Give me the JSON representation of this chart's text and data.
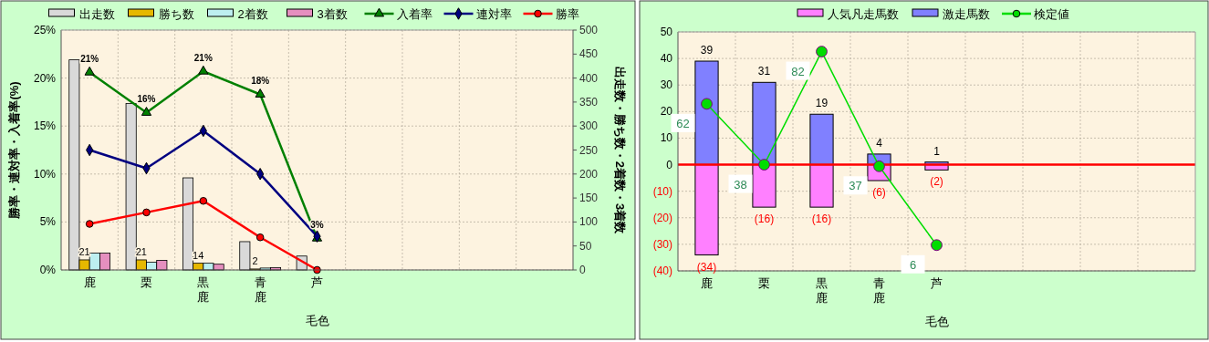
{
  "chart_data": [
    {
      "type": "bar",
      "categories": [
        "鹿",
        "栗",
        "黒鹿",
        "青鹿",
        "芦",
        null,
        null,
        null,
        null
      ],
      "xlabel": "毛色",
      "ylabel": "勝率・連対率・入着率(%)",
      "y2label": "出走数・勝ち数・2着数・3着数",
      "ylim": [
        0,
        25
      ],
      "yticks": [
        {
          "value": 0,
          "label": "0%"
        },
        {
          "value": 5,
          "label": "5%"
        },
        {
          "value": 10,
          "label": "10%"
        },
        {
          "value": 15,
          "label": "15%"
        },
        {
          "value": 20,
          "label": "20%"
        },
        {
          "value": 25,
          "label": "25%"
        }
      ],
      "y2lim": [
        0,
        500
      ],
      "y2ticks": [
        0,
        50,
        100,
        150,
        200,
        250,
        300,
        350,
        400,
        450,
        500
      ],
      "grid": true,
      "legend": "top",
      "series": [
        {
          "name": "出走数",
          "axis": "y2",
          "color": "#d9d9d9",
          "values": [
            438,
            347,
            192,
            59,
            29,
            null,
            null,
            null,
            null
          ]
        },
        {
          "name": "勝ち数",
          "axis": "y2",
          "color": "#e6b800",
          "values": [
            21,
            21,
            14,
            2,
            0,
            null,
            null,
            null,
            null
          ],
          "value_labels": [
            "21",
            "21",
            "14",
            "2",
            null,
            null,
            null,
            null,
            null
          ]
        },
        {
          "name": "2着数",
          "axis": "y2",
          "color": "#bdeff0",
          "values": [
            35,
            16,
            14,
            4,
            null,
            null,
            null,
            null,
            null
          ]
        },
        {
          "name": "3着数",
          "axis": "y2",
          "color": "#e58fbf",
          "values": [
            35,
            20,
            12,
            5,
            0,
            null,
            null,
            null,
            null
          ]
        },
        {
          "name": "入着率",
          "type": "line",
          "marker": "triangle",
          "color": "#008000",
          "values": [
            20.6,
            16.4,
            20.7,
            18.3,
            3.3,
            null,
            null,
            null,
            null
          ],
          "value_labels": [
            "21%",
            "16%",
            "21%",
            "18%",
            "3%",
            null,
            null,
            null,
            null
          ]
        },
        {
          "name": "連対率",
          "type": "line",
          "marker": "diamond",
          "color": "#000080",
          "values": [
            12.5,
            10.6,
            14.5,
            10.0,
            3.5,
            null,
            null,
            null,
            null
          ]
        },
        {
          "name": "勝率",
          "type": "line",
          "marker": "circle",
          "color": "#ff0000",
          "values": [
            4.8,
            6.0,
            7.2,
            3.4,
            0,
            null,
            null,
            null,
            null
          ]
        }
      ]
    },
    {
      "type": "bar",
      "stacked": true,
      "categories": [
        "鹿",
        "栗",
        "黒鹿",
        "青鹿",
        "芦",
        null,
        null,
        null,
        null
      ],
      "xlabel": "毛色",
      "ylim": [
        -40,
        50
      ],
      "yticks": [
        {
          "value": -40,
          "label": "(40)"
        },
        {
          "value": -30,
          "label": "(30)"
        },
        {
          "value": -20,
          "label": "(20)"
        },
        {
          "value": -10,
          "label": "(10)"
        },
        0,
        10,
        20,
        30,
        40,
        50
      ],
      "grid": true,
      "legend": "top",
      "ref_lines": [
        {
          "axis": "y",
          "value": 0,
          "color": "#ff0000"
        }
      ],
      "series": [
        {
          "name": "人気凡走馬数",
          "color": "#ff80ff",
          "values": [
            -34,
            -16,
            -16,
            -6,
            -2,
            null,
            null,
            null,
            null
          ],
          "value_labels": [
            "(34)",
            "(16)",
            "(16)",
            "(6)",
            "(2)",
            null,
            null,
            null,
            null
          ]
        },
        {
          "name": "激走馬数",
          "color": "#8080ff",
          "values": [
            39,
            31,
            19,
            4,
            1,
            null,
            null,
            null,
            null
          ],
          "value_labels": [
            "39",
            "31",
            "19",
            "4",
            "1",
            null,
            null,
            null,
            null
          ]
        },
        {
          "name": "検定値",
          "type": "line",
          "marker": "circle",
          "color": "#00dd00",
          "values": [
            22.9,
            0,
            42.6,
            -0.6,
            -30.3,
            null,
            null,
            null,
            null
          ]
        }
      ],
      "annotations": [
        {
          "text": "62",
          "x": "鹿",
          "y": 22.9
        },
        {
          "text": "38",
          "x": "栗",
          "y": 0
        },
        {
          "text": "82",
          "x": "黒鹿",
          "y": 42.6
        },
        {
          "text": "37",
          "x": "青鹿",
          "y": -0.6
        },
        {
          "text": "6",
          "x": "芦",
          "y": -30.3
        }
      ]
    }
  ]
}
